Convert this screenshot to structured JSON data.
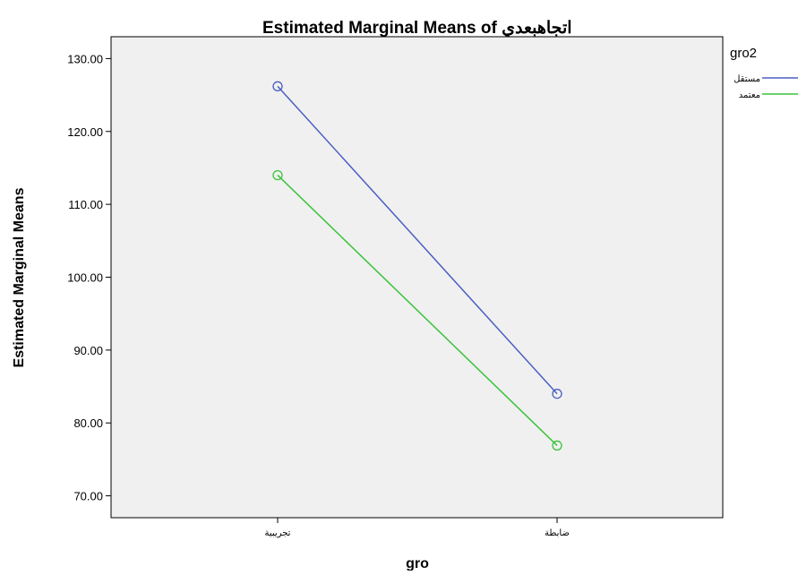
{
  "chart_data": {
    "type": "line",
    "title": "Estimated Marginal Means of اتجاهبعدي",
    "xlabel": "gro",
    "ylabel": "Estimated Marginal Means",
    "categories": [
      "تجريبية",
      "ضابطة"
    ],
    "ylim": [
      67,
      133
    ],
    "yticks": [
      "70.00",
      "80.00",
      "90.00",
      "100.00",
      "110.00",
      "120.00",
      "130.00"
    ],
    "grid": false,
    "legend_title": "gro2",
    "legend_position": "top-right outside",
    "plot_background": "#f0f0f0",
    "series": [
      {
        "name": "مستقل",
        "color": "#4a5fc1",
        "values": [
          126.2,
          84.0
        ]
      },
      {
        "name": "معتمد",
        "color": "#3cc23c",
        "values": [
          114.0,
          76.9
        ]
      }
    ]
  }
}
